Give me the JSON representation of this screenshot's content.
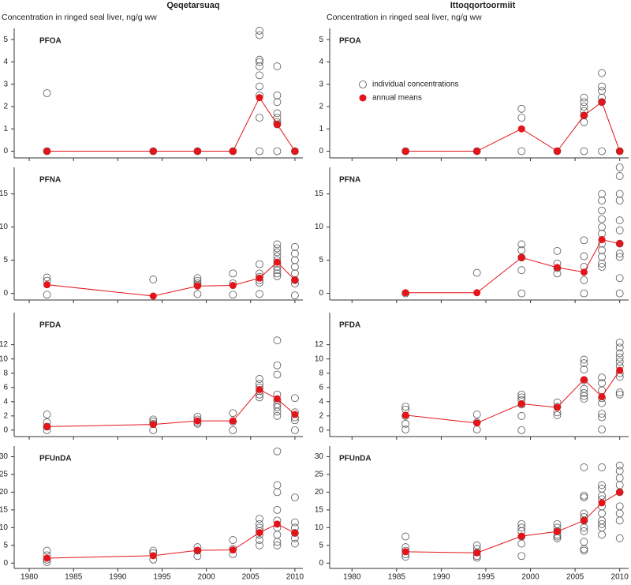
{
  "columns": [
    {
      "title": "Qeqetarsuaq",
      "subtitle": "Concentration in ringed seal liver, ng/g ww"
    },
    {
      "title": "Ittoqqortoormiit",
      "subtitle": "Concentration in ringed seal liver, ng/g ww"
    }
  ],
  "chart_data": [
    {
      "type": "line",
      "title": "PFOA",
      "series": [
        {
          "type": "scatter",
          "color": "#555555",
          "x": [
            1982,
            1982,
            1994,
            1999,
            2003,
            2006,
            2006,
            2006,
            2006,
            2006,
            2006,
            2006,
            2006,
            2006,
            2006,
            2008,
            2008,
            2008,
            2008,
            2008,
            2008,
            2008,
            2008,
            2010
          ],
          "values": [
            2.6,
            0,
            0,
            0,
            0,
            5.4,
            5.2,
            4.1,
            4.0,
            3.8,
            3.4,
            2.9,
            2.5,
            1.5,
            0,
            3.8,
            2.5,
            2.2,
            1.7,
            1.5,
            1.3,
            1.2,
            0,
            0
          ]
        },
        {
          "color": "#e3151a",
          "x": [
            1982,
            1994,
            1999,
            2003,
            2006,
            2008,
            2010
          ],
          "values": [
            0,
            0,
            0,
            0,
            2.4,
            1.2,
            0
          ]
        }
      ],
      "xlim": [
        1978.3,
        2010.9
      ],
      "xticks": [
        1980,
        1985,
        1990,
        1995,
        2000,
        2005,
        2010
      ],
      "ylim": [
        -0.3,
        5.5
      ],
      "yticks": [
        0,
        1,
        2,
        3,
        4,
        5
      ]
    },
    {
      "type": "line",
      "title": "PFNA",
      "series": [
        {
          "type": "scatter",
          "color": "#555555",
          "x": [
            1982,
            1982,
            1982,
            1994,
            1999,
            1999,
            1999,
            1999,
            1999,
            2003,
            2003,
            2003,
            2006,
            2006,
            2006,
            2006,
            2006,
            2006,
            2008,
            2008,
            2008,
            2008,
            2008,
            2008,
            2008,
            2008,
            2008,
            2008,
            2010,
            2010,
            2010,
            2010,
            2010,
            2010,
            2010,
            2010
          ],
          "values": [
            2.4,
            1.9,
            -0.2,
            2.1,
            2.3,
            1.9,
            1.5,
            1.2,
            -0.1,
            3.0,
            1.5,
            -0.2,
            4.4,
            3.0,
            2.5,
            2.0,
            1.6,
            -0.1,
            7.4,
            6.8,
            6.2,
            5.6,
            5.0,
            4.5,
            4.0,
            3.5,
            3.0,
            2.6,
            7.0,
            6.0,
            5.0,
            4.0,
            3.0,
            2.0,
            1.5,
            -0.3
          ]
        },
        {
          "color": "#e3151a",
          "x": [
            1982,
            1994,
            1999,
            2003,
            2006,
            2008,
            2010
          ],
          "values": [
            1.3,
            -0.4,
            1.1,
            1.2,
            2.3,
            4.7,
            2.0
          ]
        }
      ],
      "xlim": [
        1978.3,
        2010.9
      ],
      "xticks": [
        1980,
        1985,
        1990,
        1995,
        2000,
        2005,
        2010
      ],
      "ylim": [
        -1,
        19
      ],
      "yticks": [
        0,
        5,
        10,
        15
      ]
    },
    {
      "type": "line",
      "title": "PFDA",
      "series": [
        {
          "type": "scatter",
          "color": "#555555",
          "x": [
            1982,
            1982,
            1982,
            1982,
            1994,
            1994,
            1994,
            1994,
            1999,
            1999,
            1999,
            1999,
            2003,
            2003,
            2003,
            2006,
            2006,
            2006,
            2006,
            2006,
            2006,
            2008,
            2008,
            2008,
            2008,
            2008,
            2008,
            2008,
            2008,
            2008,
            2010,
            2010,
            2010,
            2010,
            2010
          ],
          "values": [
            2.2,
            1.1,
            0.5,
            0,
            1.5,
            1.2,
            0.9,
            0,
            1.9,
            1.5,
            1.1,
            0.9,
            2.4,
            1.2,
            0,
            7.2,
            6.5,
            6.0,
            5.5,
            5.0,
            4.6,
            12.6,
            9.1,
            7.8,
            5.0,
            4.2,
            3.6,
            3.2,
            2.6,
            2.0,
            4.5,
            2.5,
            1.8,
            1.4,
            0
          ]
        },
        {
          "color": "#e3151a",
          "x": [
            1982,
            1994,
            1999,
            2003,
            2006,
            2008,
            2010
          ],
          "values": [
            0.5,
            0.8,
            1.3,
            1.3,
            5.7,
            4.4,
            2.2
          ]
        }
      ],
      "xlim": [
        1978.3,
        2010.9
      ],
      "xticks": [
        1980,
        1985,
        1990,
        1995,
        2000,
        2005,
        2010
      ],
      "ylim": [
        -0.9,
        16.5
      ],
      "yticks": [
        0,
        2,
        4,
        6,
        8,
        10,
        12
      ]
    },
    {
      "type": "line",
      "title": "PFUnDA",
      "series": [
        {
          "type": "scatter",
          "color": "#555555",
          "x": [
            1982,
            1982,
            1982,
            1982,
            1994,
            1994,
            1994,
            1999,
            1999,
            1999,
            2003,
            2003,
            2003,
            2006,
            2006,
            2006,
            2006,
            2006,
            2006,
            2006,
            2008,
            2008,
            2008,
            2008,
            2008,
            2008,
            2008,
            2008,
            2008,
            2010,
            2010,
            2010,
            2010,
            2010,
            2010
          ],
          "values": [
            3.5,
            2.2,
            1.0,
            0.3,
            3.5,
            2.8,
            1.0,
            4.5,
            3.5,
            2.0,
            6.5,
            4.0,
            2.5,
            12.5,
            11,
            10,
            9,
            8,
            6.5,
            5,
            31.5,
            22,
            20,
            15,
            12,
            10,
            8,
            6,
            5,
            18.5,
            11.5,
            10,
            8.5,
            7,
            5.5
          ]
        },
        {
          "color": "#e3151a",
          "x": [
            1982,
            1994,
            1999,
            2003,
            2006,
            2008,
            2010
          ],
          "values": [
            1.4,
            2.1,
            3.6,
            3.7,
            8.6,
            11,
            8.5
          ]
        }
      ],
      "xlim": [
        1978.3,
        2010.9
      ],
      "xticks": [
        1980,
        1985,
        1990,
        1995,
        2000,
        2005,
        2010
      ],
      "ylim": [
        -1.5,
        33
      ],
      "yticks": [
        0,
        5,
        10,
        15,
        20,
        25,
        30
      ]
    },
    {
      "type": "line",
      "title": "PFOA",
      "legend": "upper left",
      "series": [
        {
          "name": "individual concentrations",
          "type": "scatter",
          "color": "#555555",
          "x": [
            1986,
            1994,
            1999,
            1999,
            1999,
            2003,
            2006,
            2006,
            2006,
            2006,
            2006,
            2006,
            2006,
            2008,
            2008,
            2008,
            2008,
            2008,
            2008,
            2010
          ],
          "values": [
            0,
            0,
            1.9,
            1.5,
            0,
            0,
            2.4,
            2.2,
            2.0,
            1.8,
            1.6,
            1.3,
            0,
            3.5,
            2.9,
            2.7,
            2.4,
            2.2,
            0,
            0
          ]
        },
        {
          "name": "annual means",
          "color": "#e3151a",
          "x": [
            1986,
            1994,
            1999,
            2003,
            2006,
            2008,
            2010
          ],
          "values": [
            0,
            0,
            1.0,
            0,
            1.6,
            2.2,
            0
          ]
        }
      ],
      "xlim": [
        1977.5,
        2011
      ],
      "xticks": [
        1980,
        1985,
        1990,
        1995,
        2000,
        2005,
        2010
      ],
      "ylim": [
        -0.3,
        5.5
      ],
      "yticks": [
        0,
        1,
        2,
        3,
        4,
        5
      ]
    },
    {
      "type": "line",
      "title": "PFNA",
      "series": [
        {
          "type": "scatter",
          "color": "#555555",
          "x": [
            1986,
            1994,
            1999,
            1999,
            1999,
            1999,
            1999,
            2003,
            2003,
            2003,
            2003,
            2006,
            2006,
            2006,
            2006,
            2006,
            2008,
            2008,
            2008,
            2008,
            2008,
            2008,
            2008,
            2008,
            2008,
            2008,
            2008,
            2010,
            2010,
            2010,
            2010,
            2010,
            2010,
            2010,
            2010,
            2010,
            2010,
            2010
          ],
          "values": [
            0,
            3.1,
            7.4,
            6.5,
            5.4,
            3.5,
            0,
            6.4,
            4.5,
            3.8,
            3.0,
            8.0,
            5.6,
            4.0,
            2.0,
            0,
            15,
            14,
            12.5,
            11.2,
            10,
            9,
            7.5,
            6.5,
            5.5,
            4.5,
            4,
            19,
            17.7,
            15,
            14,
            11,
            9.5,
            7.5,
            6,
            5.5,
            2.3,
            0
          ]
        },
        {
          "color": "#e3151a",
          "x": [
            1986,
            1994,
            1999,
            2003,
            2006,
            2008,
            2010
          ],
          "values": [
            0.1,
            0.1,
            5.4,
            3.9,
            3.2,
            8.1,
            7.5
          ]
        }
      ],
      "xlim": [
        1977.5,
        2011
      ],
      "xticks": [
        1980,
        1985,
        1990,
        1995,
        2000,
        2005,
        2010
      ],
      "ylim": [
        -1,
        19
      ],
      "yticks": [
        0,
        5,
        10,
        15
      ]
    },
    {
      "type": "line",
      "title": "PFDA",
      "series": [
        {
          "type": "scatter",
          "color": "#555555",
          "x": [
            1986,
            1986,
            1986,
            1986,
            1986,
            1994,
            1994,
            1994,
            1999,
            1999,
            1999,
            1999,
            1999,
            1999,
            2003,
            2003,
            2003,
            2003,
            2006,
            2006,
            2006,
            2006,
            2006,
            2006,
            2006,
            2006,
            2008,
            2008,
            2008,
            2008,
            2008,
            2008,
            2008,
            2008,
            2010,
            2010,
            2010,
            2010,
            2010,
            2010,
            2010,
            2010,
            2010,
            2010
          ],
          "values": [
            3.3,
            2.9,
            2.0,
            0.9,
            0.1,
            2.2,
            1.1,
            0.1,
            5.0,
            4.6,
            4.2,
            3.6,
            2.0,
            0,
            3.9,
            3.3,
            2.5,
            2.1,
            9.9,
            9.4,
            8.5,
            7.0,
            5.8,
            5.2,
            4.8,
            4.4,
            7.4,
            6.6,
            5.6,
            4.5,
            3.8,
            2.3,
            1.8,
            0.1,
            12.3,
            11.6,
            10.8,
            10.2,
            9.6,
            9.0,
            8.0,
            7.5,
            5.3,
            5.0
          ]
        },
        {
          "color": "#e3151a",
          "x": [
            1986,
            1994,
            1999,
            2003,
            2006,
            2008,
            2010
          ],
          "values": [
            2.1,
            1.0,
            3.7,
            3.2,
            7.1,
            4.7,
            8.4
          ]
        }
      ],
      "xlim": [
        1977.5,
        2011
      ],
      "xticks": [
        1980,
        1985,
        1990,
        1995,
        2000,
        2005,
        2010
      ],
      "ylim": [
        -0.9,
        16.5
      ],
      "yticks": [
        0,
        2,
        4,
        6,
        8,
        10,
        12
      ]
    },
    {
      "type": "line",
      "title": "PFUnDA",
      "series": [
        {
          "type": "scatter",
          "color": "#555555",
          "x": [
            1986,
            1986,
            1986,
            1986,
            1986,
            1994,
            1994,
            1994,
            1994,
            1994,
            1999,
            1999,
            1999,
            1999,
            1999,
            1999,
            2003,
            2003,
            2003,
            2003,
            2003,
            2003,
            2006,
            2006,
            2006,
            2006,
            2006,
            2006,
            2006,
            2006,
            2006,
            2006,
            2006,
            2008,
            2008,
            2008,
            2008,
            2008,
            2008,
            2008,
            2008,
            2008,
            2008,
            2008,
            2010,
            2010,
            2010,
            2010,
            2010,
            2010,
            2010,
            2010,
            2010
          ],
          "values": [
            7.5,
            4.5,
            3.5,
            2.5,
            1.8,
            5,
            4,
            3,
            2,
            1.5,
            11,
            10,
            9,
            7.5,
            5.5,
            2,
            11,
            10,
            9,
            8,
            7.5,
            7,
            27,
            19,
            18.5,
            14,
            13,
            12,
            10,
            9,
            6,
            4,
            3.5,
            27,
            22,
            21,
            19,
            18,
            16,
            14,
            12,
            11,
            10,
            8,
            27.5,
            26,
            24,
            22,
            20,
            16,
            14,
            12,
            7
          ]
        },
        {
          "color": "#e3151a",
          "x": [
            1986,
            1994,
            1999,
            2003,
            2006,
            2008,
            2010
          ],
          "values": [
            3.2,
            2.9,
            7.6,
            8.9,
            12,
            17,
            20
          ]
        }
      ],
      "xlim": [
        1977.5,
        2011
      ],
      "xticks": [
        1980,
        1985,
        1990,
        1995,
        2000,
        2005,
        2010
      ],
      "ylim": [
        -1.5,
        33
      ],
      "yticks": [
        0,
        5,
        10,
        15,
        20,
        25,
        30
      ]
    }
  ]
}
